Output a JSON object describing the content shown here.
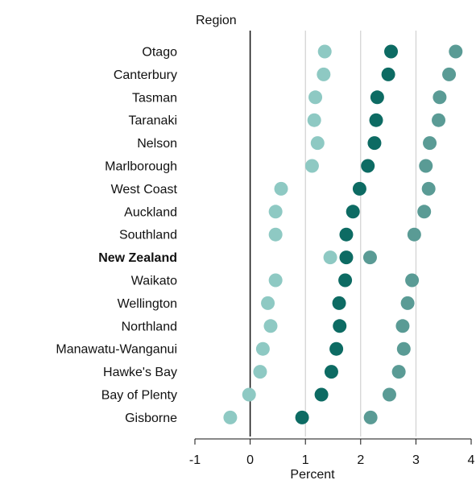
{
  "chart_data": {
    "type": "scatter",
    "orientation": "horizontal",
    "title": "",
    "y_axis_title": "Region",
    "xlabel": "Percent",
    "xlim": [
      -1,
      4
    ],
    "x_ticks": [
      -1,
      0,
      1,
      2,
      3,
      4
    ],
    "grid": "vertical lines at 1, 2, 3",
    "zero_line": true,
    "highlight_category": "New Zealand",
    "categories": [
      "Otago",
      "Canterbury",
      "Tasman",
      "Taranaki",
      "Nelson",
      "Marlborough",
      "West Coast",
      "Auckland",
      "Southland",
      "New Zealand",
      "Waikato",
      "Wellington",
      "Northland",
      "Manawatu-Wanganui",
      "Hawke's Bay",
      "Bay of Plenty",
      "Gisborne"
    ],
    "series": [
      {
        "values": [
          1.35,
          1.33,
          1.18,
          1.16,
          1.22,
          1.12,
          0.56,
          0.46,
          0.46,
          1.45,
          0.46,
          0.32,
          0.37,
          0.23,
          0.18,
          -0.02,
          -0.36
        ],
        "color": "#8ec9c3"
      },
      {
        "values": [
          2.55,
          2.5,
          2.3,
          2.28,
          2.25,
          2.13,
          1.98,
          1.86,
          1.74,
          1.74,
          1.72,
          1.61,
          1.62,
          1.56,
          1.47,
          1.29,
          0.94
        ],
        "color": "#0d6b63"
      },
      {
        "values": [
          3.72,
          3.6,
          3.43,
          3.41,
          3.25,
          3.18,
          3.23,
          3.15,
          2.97,
          2.17,
          2.93,
          2.85,
          2.76,
          2.78,
          2.69,
          2.52,
          2.18
        ],
        "color": "#5a9b95"
      }
    ]
  }
}
